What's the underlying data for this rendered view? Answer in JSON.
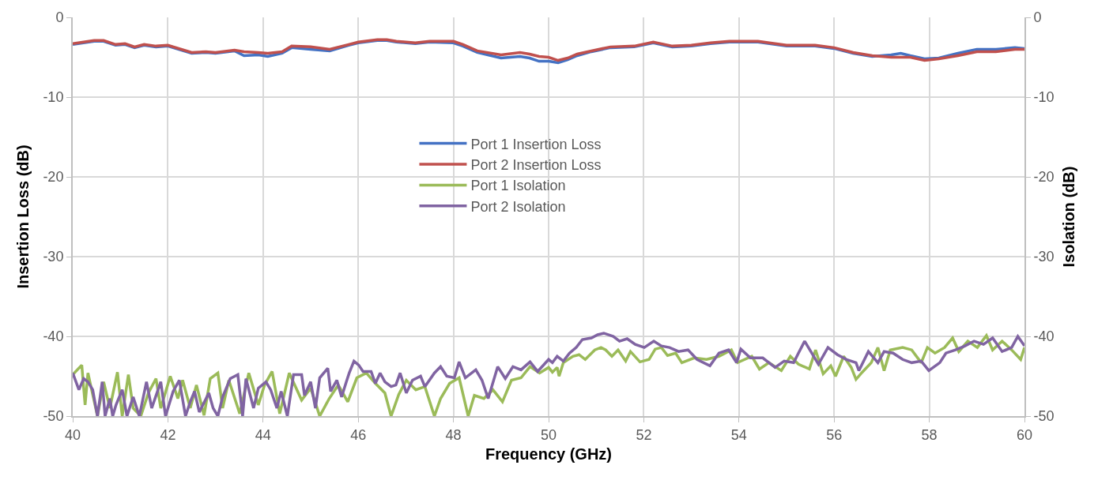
{
  "chart_data": {
    "type": "line",
    "xlabel": "Frequency (GHz)",
    "ylabel": "Insertion Loss (dB)",
    "y2label": "Isolation (dB)",
    "xlim": [
      40,
      60
    ],
    "xticks": [
      40,
      42,
      44,
      46,
      48,
      50,
      52,
      54,
      56,
      58,
      60
    ],
    "ylim": [
      -50,
      0
    ],
    "yticks": [
      -50,
      -40,
      -30,
      -20,
      -10,
      0
    ],
    "y2lim": [
      -50,
      0
    ],
    "y2ticks": [
      -50,
      -40,
      -30,
      -20,
      -10,
      0
    ],
    "grid": true,
    "legend": "center",
    "marker": "none",
    "line_style": "solid",
    "series": [
      {
        "name": "Port 1 Insertion Loss",
        "color": "#4472c4",
        "x": [
          40.0,
          40.45,
          40.65,
          40.9,
          41.1,
          41.3,
          41.5,
          41.75,
          42.0,
          42.5,
          42.8,
          43.0,
          43.4,
          43.6,
          43.9,
          44.1,
          44.4,
          44.6,
          45.0,
          45.4,
          45.8,
          46.0,
          46.4,
          46.6,
          46.8,
          47.2,
          47.5,
          48.0,
          48.2,
          48.5,
          49.0,
          49.4,
          49.6,
          49.8,
          50.0,
          50.2,
          50.4,
          50.6,
          50.9,
          51.3,
          51.8,
          52.2,
          52.6,
          53.0,
          53.4,
          53.8,
          54.4,
          55.0,
          55.6,
          56.0,
          56.4,
          56.8,
          57.2,
          57.4,
          57.6,
          57.9,
          58.2,
          58.6,
          59.0,
          59.4,
          59.8,
          60.0
        ],
        "values": [
          -3.4,
          -3.0,
          -3.0,
          -3.5,
          -3.4,
          -3.8,
          -3.5,
          -3.7,
          -3.6,
          -4.5,
          -4.4,
          -4.5,
          -4.2,
          -4.8,
          -4.7,
          -4.9,
          -4.5,
          -3.8,
          -4.0,
          -4.2,
          -3.5,
          -3.2,
          -2.9,
          -2.9,
          -3.1,
          -3.3,
          -3.1,
          -3.2,
          -3.6,
          -4.4,
          -5.1,
          -4.9,
          -5.1,
          -5.5,
          -5.5,
          -5.7,
          -5.3,
          -4.8,
          -4.3,
          -3.8,
          -3.7,
          -3.2,
          -3.7,
          -3.6,
          -3.3,
          -3.1,
          -3.1,
          -3.6,
          -3.6,
          -3.9,
          -4.5,
          -4.9,
          -4.7,
          -4.5,
          -4.8,
          -5.2,
          -5.1,
          -4.5,
          -4.0,
          -4.0,
          -3.8,
          -3.9
        ]
      },
      {
        "name": "Port 2 Insertion Loss",
        "color": "#c0504d",
        "x": [
          40.0,
          40.45,
          40.65,
          40.9,
          41.1,
          41.3,
          41.5,
          41.75,
          42.0,
          42.5,
          42.8,
          43.0,
          43.4,
          43.6,
          43.9,
          44.1,
          44.4,
          44.6,
          45.0,
          45.4,
          45.8,
          46.0,
          46.4,
          46.6,
          46.8,
          47.2,
          47.5,
          48.0,
          48.2,
          48.5,
          49.0,
          49.4,
          49.6,
          49.8,
          50.0,
          50.2,
          50.4,
          50.6,
          50.9,
          51.3,
          51.8,
          52.2,
          52.6,
          53.0,
          53.4,
          53.8,
          54.4,
          55.0,
          55.6,
          56.0,
          56.4,
          56.8,
          57.2,
          57.4,
          57.6,
          57.9,
          58.2,
          58.6,
          59.0,
          59.4,
          59.8,
          60.0
        ],
        "values": [
          -3.3,
          -2.9,
          -2.9,
          -3.4,
          -3.3,
          -3.7,
          -3.4,
          -3.6,
          -3.5,
          -4.4,
          -4.3,
          -4.4,
          -4.1,
          -4.3,
          -4.4,
          -4.5,
          -4.3,
          -3.6,
          -3.7,
          -4.0,
          -3.4,
          -3.1,
          -2.8,
          -2.8,
          -3.0,
          -3.2,
          -3.0,
          -3.0,
          -3.4,
          -4.2,
          -4.7,
          -4.4,
          -4.6,
          -4.9,
          -5.0,
          -5.4,
          -5.1,
          -4.6,
          -4.2,
          -3.7,
          -3.6,
          -3.1,
          -3.6,
          -3.5,
          -3.2,
          -3.0,
          -3.0,
          -3.5,
          -3.5,
          -3.8,
          -4.4,
          -4.8,
          -5.0,
          -5.0,
          -5.0,
          -5.4,
          -5.2,
          -4.8,
          -4.3,
          -4.3,
          -4.0,
          -4.0
        ]
      },
      {
        "name": "Port 1 Isolation",
        "color": "#9bbb59",
        "axis": "y2",
        "x": [
          40.0,
          40.19,
          40.26,
          40.32,
          40.52,
          40.65,
          40.78,
          40.94,
          41.04,
          41.17,
          41.27,
          41.43,
          41.59,
          41.75,
          41.85,
          42.05,
          42.21,
          42.31,
          42.47,
          42.6,
          42.76,
          42.89,
          43.05,
          43.15,
          43.28,
          43.51,
          43.7,
          43.9,
          44.03,
          44.19,
          44.35,
          44.55,
          44.81,
          45.0,
          45.19,
          45.39,
          45.58,
          45.78,
          45.97,
          46.17,
          46.36,
          46.56,
          46.69,
          46.85,
          47.01,
          47.21,
          47.4,
          47.6,
          47.73,
          47.92,
          48.12,
          48.31,
          48.44,
          48.64,
          48.83,
          49.03,
          49.22,
          49.42,
          49.61,
          49.81,
          50.0,
          50.08,
          50.18,
          50.22,
          50.31,
          50.51,
          50.64,
          50.77,
          50.97,
          51.1,
          51.2,
          51.33,
          51.46,
          51.62,
          51.72,
          51.92,
          52.11,
          52.24,
          52.37,
          52.5,
          52.67,
          52.8,
          53.06,
          53.32,
          53.58,
          53.84,
          53.97,
          54.27,
          54.43,
          54.63,
          54.89,
          55.08,
          55.25,
          55.48,
          55.61,
          55.77,
          55.93,
          56.03,
          56.2,
          56.36,
          56.46,
          56.59,
          56.78,
          56.92,
          57.05,
          57.18,
          57.44,
          57.63,
          57.83,
          57.96,
          58.12,
          58.32,
          58.49,
          58.62,
          58.81,
          59.01,
          59.2,
          59.33,
          59.53,
          59.73,
          59.92,
          60.0
        ],
        "values": [
          -44.8,
          -43.6,
          -48.6,
          -44.6,
          -50.0,
          -45.7,
          -49.0,
          -44.5,
          -50.0,
          -44.8,
          -49.0,
          -50.0,
          -47.1,
          -45.3,
          -49.0,
          -45.0,
          -47.8,
          -45.5,
          -49.0,
          -46.1,
          -49.9,
          -45.3,
          -44.6,
          -49.0,
          -45.5,
          -49.7,
          -44.6,
          -48.6,
          -46.1,
          -44.4,
          -49.7,
          -44.6,
          -48.0,
          -46.5,
          -50.0,
          -47.8,
          -46.1,
          -48.2,
          -45.2,
          -44.6,
          -45.9,
          -47.1,
          -50.0,
          -47.3,
          -45.5,
          -46.7,
          -46.3,
          -50.0,
          -47.8,
          -45.9,
          -45.2,
          -50.0,
          -47.4,
          -47.8,
          -46.7,
          -48.2,
          -45.5,
          -45.2,
          -43.8,
          -44.6,
          -43.9,
          -44.5,
          -43.9,
          -45.0,
          -43.3,
          -42.5,
          -42.3,
          -42.9,
          -41.7,
          -41.4,
          -41.7,
          -42.5,
          -41.7,
          -43.1,
          -41.9,
          -43.2,
          -42.9,
          -41.6,
          -41.4,
          -42.4,
          -42.1,
          -43.3,
          -42.7,
          -42.9,
          -42.5,
          -41.7,
          -43.3,
          -42.5,
          -44.1,
          -43.3,
          -44.3,
          -42.5,
          -43.5,
          -44.1,
          -41.7,
          -44.7,
          -43.7,
          -45.0,
          -42.5,
          -43.9,
          -45.4,
          -44.5,
          -43.3,
          -41.4,
          -44.3,
          -41.7,
          -41.4,
          -41.7,
          -43.3,
          -41.4,
          -42.1,
          -41.4,
          -40.2,
          -41.9,
          -40.6,
          -41.4,
          -39.9,
          -41.7,
          -40.6,
          -41.7,
          -42.9,
          -41.4
        ]
      },
      {
        "name": "Port 2 Isolation",
        "color": "#8064a2",
        "axis": "y2",
        "x": [
          40.0,
          40.13,
          40.23,
          40.32,
          40.42,
          40.52,
          40.62,
          40.68,
          40.78,
          40.84,
          40.91,
          41.04,
          41.14,
          41.27,
          41.4,
          41.55,
          41.66,
          41.85,
          41.95,
          42.11,
          42.24,
          42.37,
          42.47,
          42.56,
          42.66,
          42.86,
          42.95,
          43.05,
          43.15,
          43.31,
          43.47,
          43.57,
          43.64,
          43.8,
          43.9,
          44.06,
          44.16,
          44.29,
          44.38,
          44.51,
          44.64,
          44.81,
          44.87,
          45.0,
          45.1,
          45.19,
          45.36,
          45.42,
          45.55,
          45.65,
          45.75,
          45.81,
          45.91,
          46.01,
          46.1,
          46.27,
          46.36,
          46.46,
          46.56,
          46.69,
          46.79,
          46.88,
          47.01,
          47.14,
          47.31,
          47.4,
          47.6,
          47.73,
          47.86,
          48.02,
          48.12,
          48.25,
          48.47,
          48.6,
          48.73,
          48.93,
          49.09,
          49.25,
          49.42,
          49.61,
          49.77,
          50.0,
          50.08,
          50.18,
          50.31,
          50.44,
          50.58,
          50.71,
          50.9,
          51.03,
          51.16,
          51.36,
          51.49,
          51.65,
          51.82,
          52.01,
          52.21,
          52.37,
          52.54,
          52.73,
          52.93,
          53.12,
          53.39,
          53.58,
          53.78,
          53.95,
          54.04,
          54.24,
          54.5,
          54.76,
          54.95,
          55.15,
          55.25,
          55.38,
          55.51,
          55.67,
          55.87,
          56.07,
          56.26,
          56.46,
          56.52,
          56.72,
          56.92,
          57.05,
          57.24,
          57.44,
          57.63,
          57.83,
          57.99,
          58.22,
          58.35,
          58.55,
          58.75,
          58.94,
          59.14,
          59.33,
          59.53,
          59.73,
          59.86,
          60.0
        ],
        "values": [
          -44.6,
          -46.7,
          -45.3,
          -45.7,
          -46.7,
          -50.0,
          -45.7,
          -50.0,
          -47.8,
          -50.0,
          -48.6,
          -46.7,
          -50.0,
          -47.6,
          -50.0,
          -45.7,
          -49.0,
          -45.7,
          -50.0,
          -46.9,
          -45.5,
          -50.0,
          -48.2,
          -46.9,
          -49.5,
          -47.1,
          -49.0,
          -50.0,
          -47.6,
          -45.3,
          -44.8,
          -50.0,
          -45.3,
          -49.0,
          -46.5,
          -45.7,
          -46.7,
          -49.0,
          -46.9,
          -50.0,
          -44.8,
          -44.8,
          -47.4,
          -45.7,
          -49.0,
          -45.2,
          -44.0,
          -46.9,
          -45.5,
          -47.6,
          -45.7,
          -44.6,
          -43.1,
          -43.6,
          -44.4,
          -44.4,
          -45.9,
          -44.6,
          -45.7,
          -46.3,
          -46.1,
          -44.6,
          -47.1,
          -45.5,
          -45.0,
          -46.3,
          -44.6,
          -43.8,
          -45.0,
          -45.2,
          -43.2,
          -45.2,
          -44.2,
          -45.5,
          -47.8,
          -43.8,
          -45.3,
          -43.8,
          -44.2,
          -43.2,
          -44.4,
          -42.9,
          -43.3,
          -42.5,
          -43.1,
          -42.1,
          -41.4,
          -40.4,
          -40.2,
          -39.8,
          -39.6,
          -40.0,
          -40.6,
          -40.3,
          -41.0,
          -41.4,
          -40.6,
          -41.2,
          -41.4,
          -41.9,
          -41.7,
          -42.9,
          -43.7,
          -42.1,
          -41.7,
          -43.3,
          -41.6,
          -42.7,
          -42.7,
          -43.9,
          -43.1,
          -43.3,
          -42.1,
          -40.6,
          -41.9,
          -43.5,
          -41.4,
          -42.3,
          -42.9,
          -43.3,
          -44.3,
          -41.9,
          -43.3,
          -41.9,
          -42.1,
          -42.9,
          -43.3,
          -43.1,
          -44.3,
          -43.3,
          -42.1,
          -41.7,
          -41.2,
          -40.6,
          -41.0,
          -40.2,
          -41.9,
          -41.4,
          -40.0,
          -41.2
        ]
      }
    ]
  }
}
